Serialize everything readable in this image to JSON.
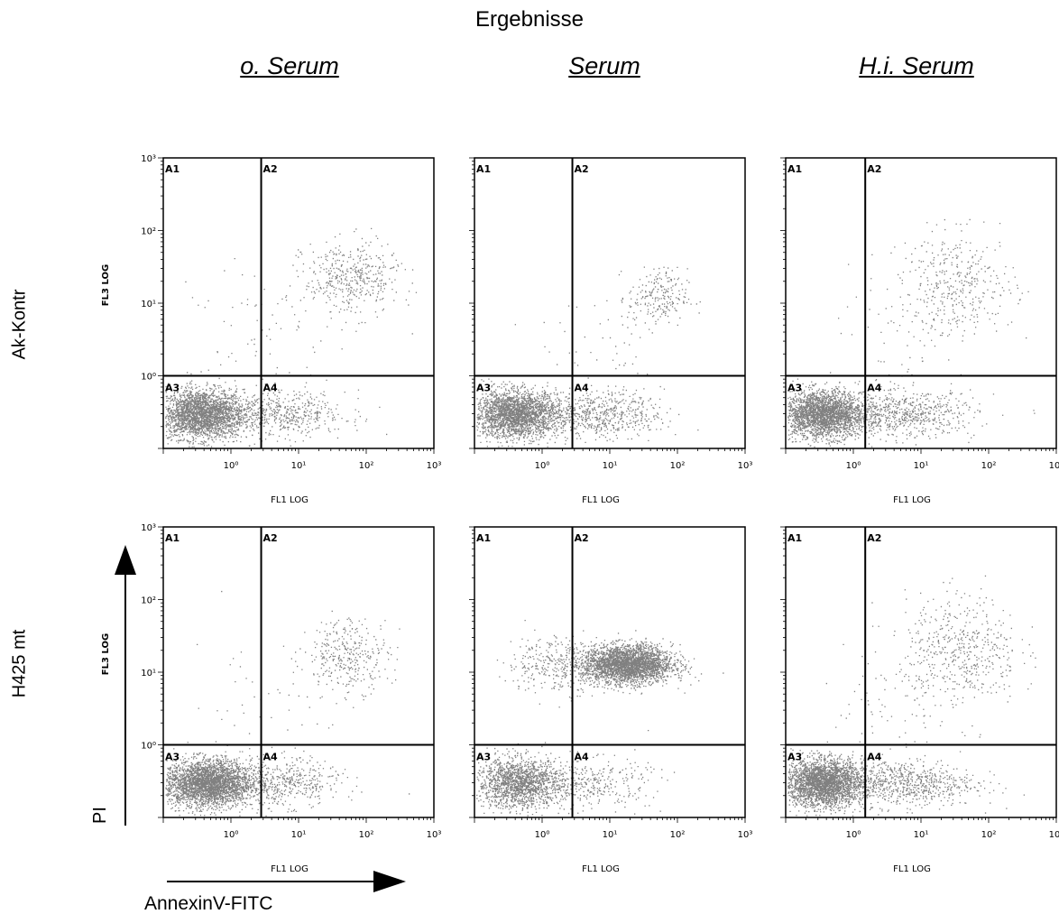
{
  "title": "Ergebnisse",
  "columns": [
    "o. Serum",
    "Serum",
    "H.i. Serum"
  ],
  "rows": [
    "Ak-Kontr",
    "H425 mt"
  ],
  "axis_labels": {
    "x": "FL1 LOG",
    "y": "FL3 LOG"
  },
  "annotation": {
    "y_arrow": "PI",
    "x_arrow": "AnnexinV-FITC"
  },
  "gates": [
    "A1",
    "A2",
    "A3",
    "A4"
  ],
  "dot_color": "#808080",
  "chart_data": {
    "type": "scatter",
    "x_scale": "log",
    "y_scale": "log",
    "xlim": [
      0.1,
      1000
    ],
    "ylim": [
      0.1,
      1000
    ],
    "x_ticks": [
      "10⁰",
      "10¹",
      "10²",
      "10³"
    ],
    "y_ticks": [
      "10⁰",
      "10¹",
      "10²",
      "10³"
    ],
    "panels": [
      {
        "row": "Ak-Kontr",
        "column": "o. Serum",
        "quadrant_x": 2.8,
        "quadrant_y": 1.0,
        "populations": [
          {
            "count": 2600,
            "x_center": 0.35,
            "y_center": 0.3,
            "x_spread": 0.32,
            "y_spread": 0.17
          },
          {
            "count": 550,
            "x_center": 5,
            "y_center": 0.3,
            "x_spread": 0.5,
            "y_spread": 0.16
          },
          {
            "count": 420,
            "x_center": 60,
            "y_center": 22,
            "x_spread": 0.35,
            "y_spread": 0.25
          },
          {
            "count": 80,
            "x_center": 4,
            "y_center": 4,
            "x_spread": 0.6,
            "y_spread": 0.5
          }
        ]
      },
      {
        "row": "Ak-Kontr",
        "column": "Serum",
        "quadrant_x": 2.8,
        "quadrant_y": 1.0,
        "populations": [
          {
            "count": 2400,
            "x_center": 0.4,
            "y_center": 0.3,
            "x_spread": 0.32,
            "y_spread": 0.16
          },
          {
            "count": 650,
            "x_center": 6,
            "y_center": 0.3,
            "x_spread": 0.5,
            "y_spread": 0.16
          },
          {
            "count": 220,
            "x_center": 50,
            "y_center": 12,
            "x_spread": 0.22,
            "y_spread": 0.2
          },
          {
            "count": 45,
            "x_center": 8,
            "y_center": 3,
            "x_spread": 0.5,
            "y_spread": 0.45
          }
        ]
      },
      {
        "row": "Ak-Kontr",
        "column": "H.i. Serum",
        "quadrant_x": 1.5,
        "quadrant_y": 1.0,
        "populations": [
          {
            "count": 2500,
            "x_center": 0.35,
            "y_center": 0.3,
            "x_spread": 0.3,
            "y_spread": 0.16
          },
          {
            "count": 700,
            "x_center": 5,
            "y_center": 0.3,
            "x_spread": 0.55,
            "y_spread": 0.16
          },
          {
            "count": 380,
            "x_center": 35,
            "y_center": 18,
            "x_spread": 0.42,
            "y_spread": 0.35
          },
          {
            "count": 60,
            "x_center": 3,
            "y_center": 3,
            "x_spread": 0.5,
            "y_spread": 0.45
          }
        ]
      },
      {
        "row": "H425 mt",
        "column": "o. Serum",
        "quadrant_x": 2.8,
        "quadrant_y": 1.0,
        "populations": [
          {
            "count": 3000,
            "x_center": 0.45,
            "y_center": 0.3,
            "x_spread": 0.32,
            "y_spread": 0.16
          },
          {
            "count": 500,
            "x_center": 5,
            "y_center": 0.3,
            "x_spread": 0.45,
            "y_spread": 0.16
          },
          {
            "count": 320,
            "x_center": 55,
            "y_center": 18,
            "x_spread": 0.3,
            "y_spread": 0.25
          },
          {
            "count": 60,
            "x_center": 4,
            "y_center": 4,
            "x_spread": 0.6,
            "y_spread": 0.5
          }
        ]
      },
      {
        "row": "H425 mt",
        "column": "Serum",
        "quadrant_x": 2.8,
        "quadrant_y": 1.0,
        "populations": [
          {
            "count": 1600,
            "x_center": 0.45,
            "y_center": 0.3,
            "x_spread": 0.32,
            "y_spread": 0.17
          },
          {
            "count": 350,
            "x_center": 5,
            "y_center": 0.3,
            "x_spread": 0.45,
            "y_spread": 0.17
          },
          {
            "count": 3000,
            "x_center": 18,
            "y_center": 13,
            "x_spread": 0.33,
            "y_spread": 0.13
          },
          {
            "count": 300,
            "x_center": 1.5,
            "y_center": 13,
            "x_spread": 0.35,
            "y_spread": 0.2
          }
        ]
      },
      {
        "row": "H425 mt",
        "column": "H.i. Serum",
        "quadrant_x": 1.5,
        "quadrant_y": 1.0,
        "populations": [
          {
            "count": 2800,
            "x_center": 0.35,
            "y_center": 0.3,
            "x_spread": 0.3,
            "y_spread": 0.16
          },
          {
            "count": 750,
            "x_center": 5,
            "y_center": 0.3,
            "x_spread": 0.55,
            "y_spread": 0.16
          },
          {
            "count": 500,
            "x_center": 40,
            "y_center": 20,
            "x_spread": 0.42,
            "y_spread": 0.38
          },
          {
            "count": 70,
            "x_center": 3,
            "y_center": 3,
            "x_spread": 0.5,
            "y_spread": 0.45
          }
        ]
      }
    ]
  }
}
